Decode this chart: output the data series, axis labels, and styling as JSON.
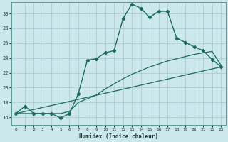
{
  "xlabel": "Humidex (Indice chaleur)",
  "background_color": "#cce8ec",
  "grid_color": "#aacdd4",
  "line_color": "#1a6b5a",
  "xlim": [
    -0.5,
    23.5
  ],
  "ylim": [
    15.0,
    31.5
  ],
  "xticks": [
    0,
    1,
    2,
    3,
    4,
    5,
    6,
    7,
    8,
    9,
    10,
    11,
    12,
    13,
    14,
    15,
    16,
    17,
    18,
    19,
    20,
    21,
    22,
    23
  ],
  "yticks": [
    16,
    18,
    20,
    22,
    24,
    26,
    28,
    30
  ],
  "curve_x": [
    0,
    1,
    2,
    3,
    4,
    5,
    6,
    7,
    8,
    9,
    10,
    11,
    12,
    13,
    14,
    15,
    16,
    17,
    18,
    19,
    20,
    21,
    22,
    23
  ],
  "curve_y": [
    16.5,
    17.5,
    16.5,
    16.5,
    16.5,
    15.9,
    16.5,
    19.2,
    23.7,
    23.9,
    24.7,
    25.0,
    29.3,
    31.3,
    30.7,
    29.5,
    30.3,
    30.3,
    26.7,
    26.1,
    25.5,
    25.0,
    23.8,
    22.8
  ],
  "line2_x": [
    0,
    4,
    5,
    6,
    7,
    8,
    9,
    10,
    11,
    12,
    13,
    14,
    15,
    16,
    17,
    18,
    19,
    20,
    21,
    22,
    23
  ],
  "line2_y": [
    16.5,
    16.5,
    16.5,
    16.8,
    18.0,
    18.5,
    19.0,
    19.8,
    20.5,
    21.2,
    21.8,
    22.3,
    22.8,
    23.2,
    23.6,
    23.9,
    24.2,
    24.5,
    24.7,
    24.9,
    23.0
  ],
  "line3_x": [
    0,
    23
  ],
  "line3_y": [
    16.5,
    22.8
  ]
}
